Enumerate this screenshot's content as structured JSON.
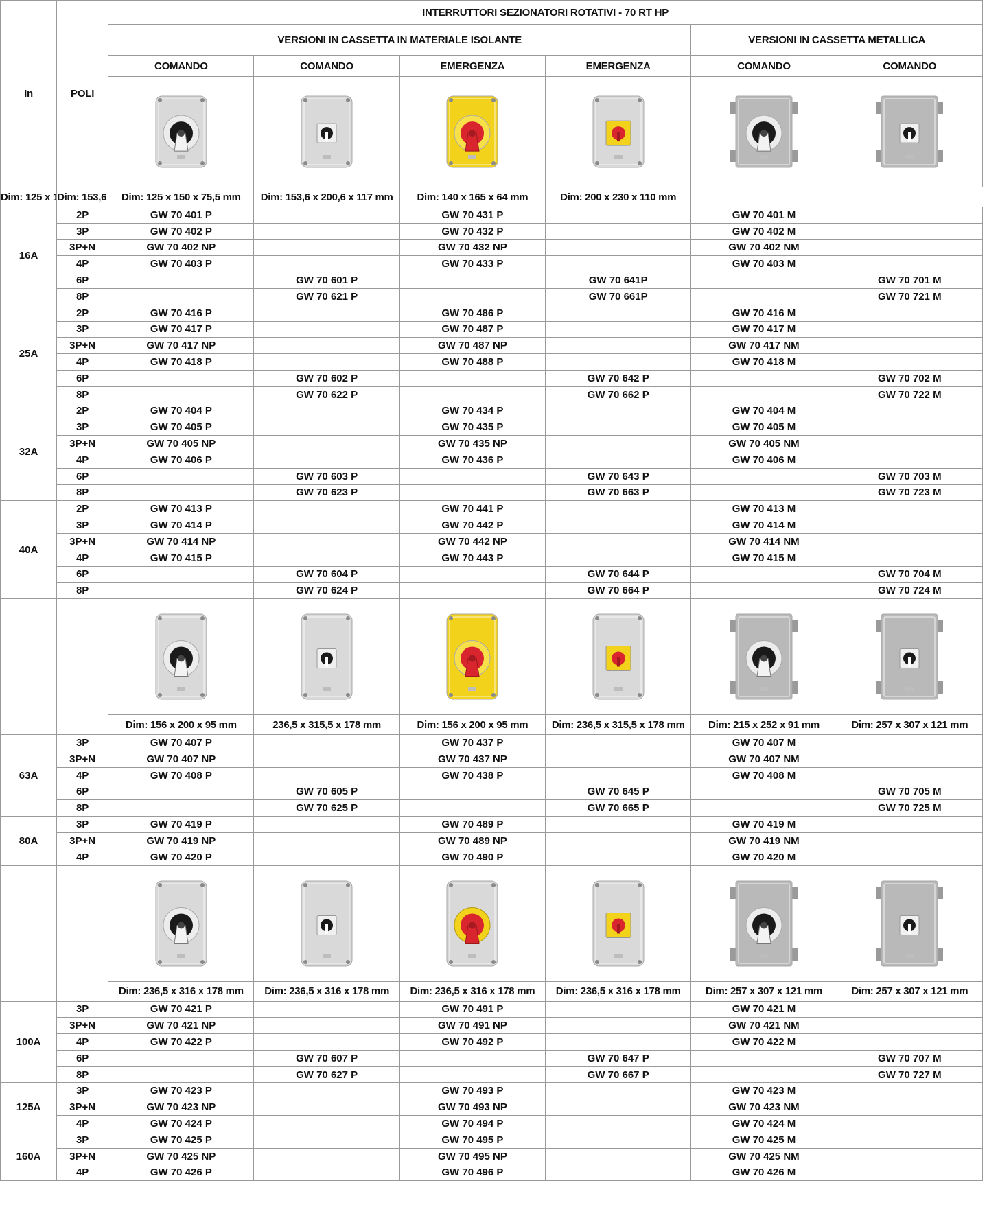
{
  "header": {
    "in_label": "In",
    "poli_label": "POLI",
    "main_title": "INTERRUTTORI SEZIONATORI ROTATIVI - 70 RT HP",
    "group_insulating": "VERSIONI IN CASSETTA IN MATERIALE ISOLANTE",
    "group_metal": "VERSIONI IN CASSETTA METALLICA",
    "col_types": [
      "COMANDO",
      "COMANDO",
      "EMERGENZA",
      "EMERGENZA",
      "COMANDO",
      "COMANDO"
    ]
  },
  "colors": {
    "grey_box": "#d9d9d9",
    "yellow_box": "#f2d21a",
    "red_knob": "#d8252e",
    "black_knob": "#1a1a1a",
    "metal_box": "#b9b9b9"
  },
  "sections": [
    {
      "dims": [
        "Dim: 125 x 150 x 75,5 mm",
        "Dim: 153,6 x 200,6 x 117 mm",
        "Dim: 125 x 150 x 75,5 mm",
        "Dim: 153,6 x 200,6 x 117 mm",
        "Dim: 140 x 165 x 64 mm",
        "Dim: 200 x 230 x 110 mm"
      ],
      "icons": [
        "grey-box-black-knob-icon",
        "grey-box-black-knob-small-icon",
        "yellow-box-red-knob-icon",
        "grey-box-red-knob-icon",
        "metal-box-black-knob-icon",
        "metal-box-black-knob-small-icon"
      ],
      "groups": [
        {
          "in": "16A",
          "rows": [
            [
              "2P",
              "GW 70 401 P",
              "",
              "GW 70 431 P",
              "",
              "GW 70 401 M",
              ""
            ],
            [
              "3P",
              "GW 70 402 P",
              "",
              "GW 70 432 P",
              "",
              "GW 70 402 M",
              ""
            ],
            [
              "3P+N",
              "GW 70 402 NP",
              "",
              "GW 70 432 NP",
              "",
              "GW 70 402 NM",
              ""
            ],
            [
              "4P",
              "GW 70 403 P",
              "",
              "GW 70 433 P",
              "",
              "GW 70 403 M",
              ""
            ],
            [
              "6P",
              "",
              "GW 70 601 P",
              "",
              "GW 70 641P",
              "",
              "GW 70 701 M"
            ],
            [
              "8P",
              "",
              "GW 70 621 P",
              "",
              "GW 70 661P",
              "",
              "GW 70 721 M"
            ]
          ]
        },
        {
          "in": "25A",
          "rows": [
            [
              "2P",
              "GW 70 416 P",
              "",
              "GW 70 486 P",
              "",
              "GW 70 416 M",
              ""
            ],
            [
              "3P",
              "GW 70 417 P",
              "",
              "GW 70 487 P",
              "",
              "GW 70 417 M",
              ""
            ],
            [
              "3P+N",
              "GW 70 417 NP",
              "",
              "GW 70 487 NP",
              "",
              "GW 70 417 NM",
              ""
            ],
            [
              "4P",
              "GW 70 418 P",
              "",
              "GW 70 488 P",
              "",
              "GW 70 418 M",
              ""
            ],
            [
              "6P",
              "",
              "GW 70 602 P",
              "",
              "GW 70 642 P",
              "",
              "GW 70 702 M"
            ],
            [
              "8P",
              "",
              "GW 70 622 P",
              "",
              "GW 70 662 P",
              "",
              "GW 70 722 M"
            ]
          ]
        },
        {
          "in": "32A",
          "rows": [
            [
              "2P",
              "GW 70 404 P",
              "",
              "GW 70 434 P",
              "",
              "GW 70 404 M",
              ""
            ],
            [
              "3P",
              "GW 70 405 P",
              "",
              "GW 70 435 P",
              "",
              "GW 70 405 M",
              ""
            ],
            [
              "3P+N",
              "GW 70 405 NP",
              "",
              "GW 70 435 NP",
              "",
              "GW 70 405 NM",
              ""
            ],
            [
              "4P",
              "GW 70 406 P",
              "",
              "GW 70 436 P",
              "",
              "GW 70 406 M",
              ""
            ],
            [
              "6P",
              "",
              "GW 70 603 P",
              "",
              "GW 70 643 P",
              "",
              "GW 70 703 M"
            ],
            [
              "8P",
              "",
              "GW 70 623 P",
              "",
              "GW 70 663 P",
              "",
              "GW 70 723 M"
            ]
          ]
        },
        {
          "in": "40A",
          "rows": [
            [
              "2P",
              "GW 70 413 P",
              "",
              "GW 70 441 P",
              "",
              "GW 70 413 M",
              ""
            ],
            [
              "3P",
              "GW 70 414 P",
              "",
              "GW 70 442 P",
              "",
              "GW 70 414 M",
              ""
            ],
            [
              "3P+N",
              "GW 70 414 NP",
              "",
              "GW 70 442 NP",
              "",
              "GW 70 414 NM",
              ""
            ],
            [
              "4P",
              "GW 70 415 P",
              "",
              "GW 70 443 P",
              "",
              "GW 70 415 M",
              ""
            ],
            [
              "6P",
              "",
              "GW 70 604 P",
              "",
              "GW 70 644 P",
              "",
              "GW 70 704 M"
            ],
            [
              "8P",
              "",
              "GW 70 624 P",
              "",
              "GW 70 664 P",
              "",
              "GW 70 724 M"
            ]
          ]
        }
      ]
    },
    {
      "dims": [
        "Dim: 156 x 200 x 95 mm",
        "236,5 x 315,5 x 178 mm",
        "Dim: 156 x 200 x 95 mm",
        "Dim: 236,5 x 315,5 x 178 mm",
        "Dim: 215 x 252 x 91 mm",
        "Dim: 257 x 307 x 121 mm"
      ],
      "icons": [
        "grey-box-black-knob-icon",
        "grey-box-black-knob-small-icon",
        "yellow-box-red-knob-icon",
        "grey-box-red-knob-icon",
        "metal-box-black-knob-icon",
        "metal-box-black-knob-small-icon"
      ],
      "groups": [
        {
          "in": "63A",
          "rows": [
            [
              "3P",
              "GW 70 407 P",
              "",
              "GW 70 437 P",
              "",
              "GW 70 407 M",
              ""
            ],
            [
              "3P+N",
              "GW 70 407 NP",
              "",
              "GW 70 437 NP",
              "",
              "GW 70 407 NM",
              ""
            ],
            [
              "4P",
              "GW 70 408 P",
              "",
              "GW 70 438 P",
              "",
              "GW 70 408 M",
              ""
            ],
            [
              "6P",
              "",
              "GW 70 605 P",
              "",
              "GW 70 645 P",
              "",
              "GW 70 705 M"
            ],
            [
              "8P",
              "",
              "GW 70 625 P",
              "",
              "GW 70 665 P",
              "",
              "GW 70 725 M"
            ]
          ]
        },
        {
          "in": "80A",
          "rows": [
            [
              "3P",
              "GW 70 419 P",
              "",
              "GW 70 489 P",
              "",
              "GW 70 419 M",
              ""
            ],
            [
              "3P+N",
              "GW 70 419 NP",
              "",
              "GW 70 489 NP",
              "",
              "GW 70 419 NM",
              ""
            ],
            [
              "4P",
              "GW 70 420 P",
              "",
              "GW 70 490 P",
              "",
              "GW 70 420 M",
              ""
            ]
          ]
        }
      ]
    },
    {
      "dims": [
        "Dim: 236,5 x 316 x 178 mm",
        "Dim: 236,5 x 316 x 178 mm",
        "Dim: 236,5 x 316 x 178 mm",
        "Dim: 236,5 x 316 x 178 mm",
        "Dim: 257 x 307 x 121 mm",
        "Dim: 257 x 307 x 121 mm"
      ],
      "icons": [
        "grey-box-black-knob-icon",
        "grey-box-black-knob-small-icon",
        "grey-box-red-yellow-knob-icon",
        "grey-box-red-knob-icon",
        "metal-box-black-knob-icon",
        "metal-box-black-knob-small-icon"
      ],
      "groups": [
        {
          "in": "100A",
          "rows": [
            [
              "3P",
              "GW 70 421 P",
              "",
              "GW 70 491 P",
              "",
              "GW 70 421 M",
              ""
            ],
            [
              "3P+N",
              "GW 70 421 NP",
              "",
              "GW 70 491 NP",
              "",
              "GW 70 421 NM",
              ""
            ],
            [
              "4P",
              "GW 70 422 P",
              "",
              "GW 70 492 P",
              "",
              "GW 70 422 M",
              ""
            ],
            [
              "6P",
              "",
              "GW 70 607 P",
              "",
              "GW 70 647 P",
              "",
              "GW 70 707 M"
            ],
            [
              "8P",
              "",
              "GW 70 627 P",
              "",
              "GW 70 667 P",
              "",
              "GW 70 727 M"
            ]
          ]
        },
        {
          "in": "125A",
          "rows": [
            [
              "3P",
              "GW 70 423 P",
              "",
              "GW 70 493 P",
              "",
              "GW 70 423 M",
              ""
            ],
            [
              "3P+N",
              "GW 70 423 NP",
              "",
              "GW 70 493 NP",
              "",
              "GW 70 423 NM",
              ""
            ],
            [
              "4P",
              "GW 70 424 P",
              "",
              "GW 70 494 P",
              "",
              "GW 70 424 M",
              ""
            ]
          ]
        },
        {
          "in": "160A",
          "rows": [
            [
              "3P",
              "GW 70 425 P",
              "",
              "GW 70 495 P",
              "",
              "GW 70 425 M",
              ""
            ],
            [
              "3P+N",
              "GW 70 425 NP",
              "",
              "GW 70 495 NP",
              "",
              "GW 70 425 NM",
              ""
            ],
            [
              "4P",
              "GW 70 426 P",
              "",
              "GW 70 496 P",
              "",
              "GW 70 426 M",
              ""
            ]
          ]
        }
      ]
    }
  ]
}
